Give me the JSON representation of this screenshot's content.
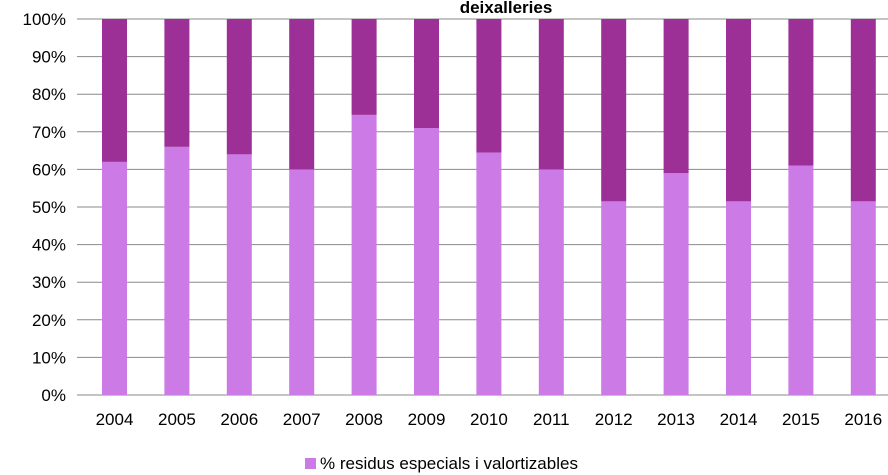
{
  "chart_data": {
    "type": "bar",
    "stacked": "percent",
    "title": "deixalleries",
    "categories": [
      "2004",
      "2005",
      "2006",
      "2007",
      "2008",
      "2009",
      "2010",
      "2011",
      "2012",
      "2013",
      "2014",
      "2015",
      "2016"
    ],
    "series": [
      {
        "name": "% residus especials i valortizables",
        "color": "#cc7ae6",
        "values": [
          62,
          66,
          64,
          60,
          74.5,
          71,
          64.5,
          60,
          51.5,
          59,
          51.5,
          61,
          51.5
        ]
      },
      {
        "name": "",
        "color": "#9c3096",
        "values": [
          38,
          34,
          36,
          40,
          25.5,
          29,
          35.5,
          40,
          48.5,
          41,
          48.5,
          39,
          48.5
        ]
      }
    ],
    "yticks": [
      "0%",
      "10%",
      "20%",
      "30%",
      "40%",
      "50%",
      "60%",
      "70%",
      "80%",
      "90%",
      "100%"
    ],
    "ylim": [
      0,
      100
    ],
    "grid": true,
    "legend": "bottom"
  }
}
